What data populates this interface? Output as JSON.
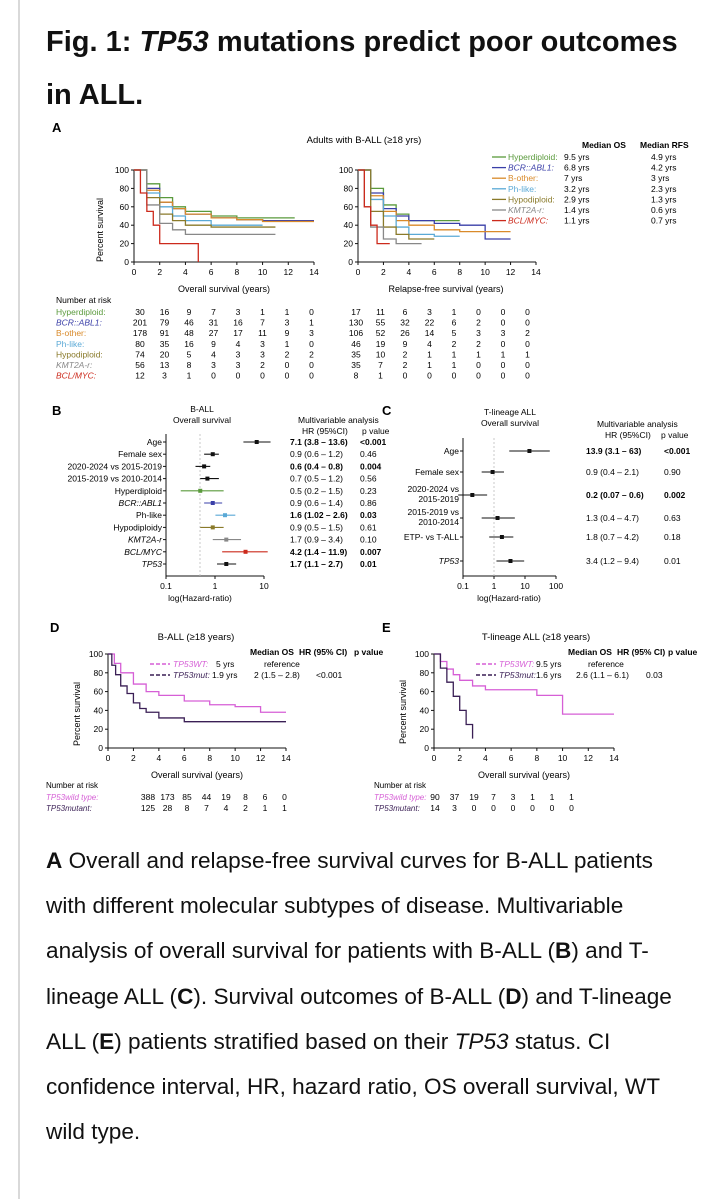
{
  "title": {
    "prefix": "Fig. 1: ",
    "gene": "TP53",
    "rest": " mutations predict poor outcomes in ALL."
  },
  "colors": {
    "hyperdiploid": "#5a9a3c",
    "bcr_abl1": "#3a3fa8",
    "b_other": "#d98a2a",
    "ph_like": "#5aa9d6",
    "hypodiploid": "#8a7a2a",
    "kmt2a": "#888888",
    "bcl_myc": "#cc2a1c",
    "wt": "#d65fd6",
    "mut": "#3a1f55"
  },
  "panelA": {
    "letter": "A",
    "heading": "Adults with B-ALL (≥18 yrs)",
    "ylabel": "Percent survival",
    "os_xlabel": "Overall survival (years)",
    "rfs_xlabel": "Relapse-free survival (years)",
    "yticks": [
      "0",
      "20",
      "40",
      "60",
      "80",
      "100"
    ],
    "xticks": [
      "0",
      "2",
      "4",
      "6",
      "8",
      "10",
      "12",
      "14"
    ],
    "legend_header_os": "Median OS",
    "legend_header_rfs": "Median RFS",
    "legend": [
      {
        "label": "Hyperdiploid:",
        "os": "9.5 yrs",
        "rfs": "4.9 yrs"
      },
      {
        "label": "BCR::ABL1:",
        "os": "6.8 yrs",
        "rfs": "4.2 yrs"
      },
      {
        "label": "B-other:",
        "os": "7 yrs",
        "rfs": "3 yrs"
      },
      {
        "label": "Ph-like:",
        "os": "3.2 yrs",
        "rfs": "2.3 yrs"
      },
      {
        "label": "Hypodiploid:",
        "os": "2.9 yrs",
        "rfs": "1.3 yrs"
      },
      {
        "label": "KMT2A-r:",
        "os": "1.4 yrs",
        "rfs": "0.6 yrs"
      },
      {
        "label": "BCL/MYC:",
        "os": "1.1 yrs",
        "rfs": "0.7 yrs"
      }
    ],
    "risk_title": "Number at risk",
    "risk_rows": [
      {
        "label": "Hyperdiploid:",
        "os": [
          "30",
          "16",
          "9",
          "7",
          "3",
          "1",
          "1",
          "0"
        ],
        "rfs": [
          "17",
          "11",
          "6",
          "3",
          "1",
          "0",
          "0",
          "0"
        ]
      },
      {
        "label": "BCR::ABL1:",
        "os": [
          "201",
          "79",
          "46",
          "31",
          "16",
          "7",
          "3",
          "1"
        ],
        "rfs": [
          "130",
          "55",
          "32",
          "22",
          "6",
          "2",
          "0",
          "0"
        ]
      },
      {
        "label": "B-other:",
        "os": [
          "178",
          "91",
          "48",
          "27",
          "17",
          "11",
          "9",
          "3"
        ],
        "rfs": [
          "106",
          "52",
          "26",
          "14",
          "5",
          "3",
          "3",
          "2"
        ]
      },
      {
        "label": "Ph-like:",
        "os": [
          "80",
          "35",
          "16",
          "9",
          "4",
          "3",
          "1",
          "0"
        ],
        "rfs": [
          "46",
          "19",
          "9",
          "4",
          "2",
          "2",
          "0",
          "0"
        ]
      },
      {
        "label": "Hypodiploid:",
        "os": [
          "74",
          "20",
          "5",
          "4",
          "3",
          "3",
          "2",
          "2"
        ],
        "rfs": [
          "35",
          "10",
          "2",
          "1",
          "1",
          "1",
          "1",
          "1"
        ]
      },
      {
        "label": "KMT2A-r:",
        "os": [
          "56",
          "13",
          "8",
          "3",
          "3",
          "2",
          "0",
          "0"
        ],
        "rfs": [
          "35",
          "7",
          "2",
          "1",
          "1",
          "0",
          "0",
          "0"
        ]
      },
      {
        "label": "BCL/MYC:",
        "os": [
          "12",
          "3",
          "1",
          "0",
          "0",
          "0",
          "0",
          "0"
        ],
        "rfs": [
          "8",
          "1",
          "0",
          "0",
          "0",
          "0",
          "0",
          "0"
        ]
      }
    ]
  },
  "panelB": {
    "letter": "B",
    "heading1": "B-ALL",
    "heading2": "Overall survival",
    "mv_title": "Multivariable analysis",
    "hr_header": "HR (95%CI)",
    "p_header": "p value",
    "xlabel": "log(Hazard-ratio)",
    "xticks": [
      "0.1",
      "1",
      "10"
    ],
    "rows": [
      {
        "label": "Age",
        "hr": "7.1 (3.8 – 13.6)",
        "p": "<0.001",
        "bold": true
      },
      {
        "label": "Female sex",
        "hr": "0.9 (0.6 – 1.2)",
        "p": "0.46",
        "bold": false
      },
      {
        "label": "2020-2024 vs 2015-2019",
        "hr": "0.6 (0.4 – 0.8)",
        "p": "0.004",
        "bold": true
      },
      {
        "label": "2015-2019 vs 2010-2014",
        "hr": "0.7 (0.5 – 1.2)",
        "p": "0.56",
        "bold": false
      },
      {
        "label": "Hyperdiploid",
        "hr": "0.5 (0.2 – 1.5)",
        "p": "0.23",
        "bold": false
      },
      {
        "label": "BCR::ABL1",
        "hr": "0.9 (0.6 – 1.4)",
        "p": "0.86",
        "bold": false
      },
      {
        "label": "Ph-like",
        "hr": "1.6 (1.02 – 2.6)",
        "p": "0.03",
        "bold": true
      },
      {
        "label": "Hypodiploidy",
        "hr": "0.9 (0.5 – 1.5)",
        "p": "0.61",
        "bold": false
      },
      {
        "label": "KMT2A-r",
        "hr": "1.7 (0.9 – 3.4)",
        "p": "0.10",
        "bold": false
      },
      {
        "label": "BCL/MYC",
        "hr": "4.2 (1.4 – 11.9)",
        "p": "0.007",
        "bold": true
      },
      {
        "label": "TP53",
        "hr": "1.7 (1.1 – 2.7)",
        "p": "0.01",
        "bold": true
      }
    ]
  },
  "panelC": {
    "letter": "C",
    "heading1": "T-lineage ALL",
    "heading2": "Overall survival",
    "mv_title": "Multivariable analysis",
    "hr_header": "HR (95%CI)",
    "p_header": "p value",
    "xlabel": "log(Hazard-ratio)",
    "xticks": [
      "0.1",
      "1",
      "10",
      "100"
    ],
    "rows": [
      {
        "label1": "Age",
        "label2": "",
        "hr": "13.9 (3.1 – 63)",
        "p": "<0.001",
        "bold": true
      },
      {
        "label1": "Female sex",
        "label2": "",
        "hr": "0.9 (0.4 – 2.1)",
        "p": "0.90",
        "bold": false
      },
      {
        "label1": "2020-2024 vs",
        "label2": "2015-2019",
        "hr": "0.2 (0.07 – 0.6)",
        "p": "0.002",
        "bold": true
      },
      {
        "label1": "2015-2019 vs",
        "label2": "2010-2014",
        "hr": "1.3 (0.4 – 4.7)",
        "p": "0.63",
        "bold": false
      },
      {
        "label1": "ETP- vs T-ALL",
        "label2": "",
        "hr": "1.8 (0.7 – 4.2)",
        "p": "0.18",
        "bold": false
      },
      {
        "label1": "TP53",
        "label2": "",
        "hr": "3.4 (1.2 – 9.4)",
        "p": "0.01",
        "bold": false
      }
    ]
  },
  "panelD": {
    "letter": "D",
    "heading": "B-ALL (≥18 years)",
    "ylabel": "Percent survival",
    "xlabel": "Overall survival (years)",
    "yticks": [
      "0",
      "20",
      "40",
      "60",
      "80",
      "100"
    ],
    "xticks": [
      "0",
      "2",
      "4",
      "6",
      "8",
      "10",
      "12",
      "14"
    ],
    "h_os": "Median OS",
    "h_hr": "HR (95% CI)",
    "h_p": "p value",
    "wt_label": "TP53WT:",
    "wt_os": "5 yrs",
    "wt_hr": "reference",
    "mut_label": "TP53mut:",
    "mut_os": "1.9 yrs",
    "mut_hr": "2 (1.5 – 2.8)",
    "mut_p": "<0.001",
    "risk_title": "Number at risk",
    "risk_wt_label": "TP53wild type",
    "risk_mut_label": "TP53mutant",
    "risk_wt": [
      "388",
      "173",
      "85",
      "44",
      "19",
      "8",
      "6",
      "0"
    ],
    "risk_mut": [
      "125",
      "28",
      "8",
      "7",
      "4",
      "2",
      "1",
      "1"
    ]
  },
  "panelE": {
    "letter": "E",
    "heading": "T-lineage ALL (≥18 years)",
    "ylabel": "Percent survival",
    "xlabel": "Overall survival (years)",
    "yticks": [
      "0",
      "20",
      "40",
      "60",
      "80",
      "100"
    ],
    "xticks": [
      "0",
      "2",
      "4",
      "6",
      "8",
      "10",
      "12",
      "14"
    ],
    "h_os": "Median OS",
    "h_hr": "HR (95% CI)",
    "h_p": "p value",
    "wt_label": "TP53WT:",
    "wt_os": "9.5 yrs",
    "wt_hr": "reference",
    "mut_label": "TP53mut:",
    "mut_os": "1.6 yrs",
    "mut_hr": "2.6 (1.1 – 6.1)",
    "mut_p": "0.03",
    "risk_title": "Number at risk",
    "risk_wt_label": "TP53wild type",
    "risk_mut_label": "TP53mutant",
    "risk_wt": [
      "90",
      "37",
      "19",
      "7",
      "3",
      "1",
      "1",
      "1"
    ],
    "risk_mut": [
      "14",
      "3",
      "0",
      "0",
      "0",
      "0",
      "0",
      "0"
    ]
  },
  "caption": {
    "a_letter": "A",
    "a_text": " Overall and relapse-free survival curves for B-ALL patients with different molecular subtypes of disease. Multivariable analysis of overall survival for patients with B-ALL (",
    "b_letter": "B",
    "mid1": ") and T-lineage ALL (",
    "c_letter": "C",
    "mid2": "). Survival outcomes of B-ALL (",
    "d_letter": "D",
    "mid3": ") and T-lineage ALL (",
    "e_letter": "E",
    "mid4": ") patients stratified based on their ",
    "gene": "TP53",
    "end": " status. CI confidence interval, HR, hazard ratio, OS overall survival, WT wild type."
  },
  "chart_data": [
    {
      "type": "line",
      "title": "Adults with B-ALL (≥18 yrs) — Overall survival",
      "xlabel": "Overall survival (years)",
      "ylabel": "Percent survival",
      "xlim": [
        0,
        14
      ],
      "ylim": [
        0,
        100
      ],
      "series": [
        {
          "name": "Hyperdiploid",
          "x": [
            0,
            1,
            2,
            3,
            4,
            6,
            8,
            10,
            12.5
          ],
          "y": [
            100,
            85,
            70,
            60,
            55,
            50,
            48,
            48,
            48
          ]
        },
        {
          "name": "BCR::ABL1",
          "x": [
            0,
            1,
            2,
            3,
            4,
            6,
            8,
            10,
            12,
            14
          ],
          "y": [
            100,
            80,
            65,
            58,
            52,
            48,
            46,
            45,
            45,
            45
          ]
        },
        {
          "name": "B-other",
          "x": [
            0,
            1,
            2,
            3,
            4,
            6,
            8,
            10,
            12,
            14
          ],
          "y": [
            100,
            78,
            65,
            58,
            52,
            48,
            46,
            44,
            44,
            44
          ]
        },
        {
          "name": "Ph-like",
          "x": [
            0,
            1,
            2,
            3,
            4,
            6,
            8,
            10
          ],
          "y": [
            100,
            75,
            60,
            50,
            45,
            40,
            40,
            40
          ]
        },
        {
          "name": "Hypodiploid",
          "x": [
            0,
            1,
            2,
            3,
            4,
            6,
            8,
            11
          ],
          "y": [
            100,
            70,
            52,
            45,
            40,
            38,
            38,
            38
          ]
        },
        {
          "name": "KMT2A-r",
          "x": [
            0,
            1,
            2,
            3,
            4,
            6,
            8,
            11
          ],
          "y": [
            100,
            62,
            42,
            35,
            30,
            30,
            30,
            30
          ]
        },
        {
          "name": "BCL/MYC",
          "x": [
            0,
            0.5,
            1,
            1.5,
            2,
            4,
            5
          ],
          "y": [
            100,
            75,
            55,
            40,
            20,
            20,
            0
          ]
        }
      ]
    },
    {
      "type": "line",
      "title": "Adults with B-ALL (≥18 yrs) — Relapse-free survival",
      "xlabel": "Relapse-free survival (years)",
      "ylabel": "Percent survival",
      "xlim": [
        0,
        14
      ],
      "ylim": [
        0,
        100
      ],
      "series": [
        {
          "name": "Hyperdiploid",
          "x": [
            0,
            1,
            2,
            3,
            4,
            6,
            8
          ],
          "y": [
            100,
            80,
            62,
            52,
            45,
            45,
            45
          ]
        },
        {
          "name": "BCR::ABL1",
          "x": [
            0,
            1,
            2,
            3,
            4,
            6,
            8,
            10,
            12
          ],
          "y": [
            100,
            75,
            58,
            50,
            45,
            42,
            40,
            25,
            25
          ]
        },
        {
          "name": "B-other",
          "x": [
            0,
            1,
            2,
            3,
            4,
            6,
            8,
            10,
            12
          ],
          "y": [
            100,
            72,
            55,
            45,
            40,
            35,
            33,
            33,
            33
          ]
        },
        {
          "name": "Ph-like",
          "x": [
            0,
            1,
            2,
            3,
            4,
            6,
            8
          ],
          "y": [
            100,
            68,
            50,
            38,
            30,
            28,
            28
          ]
        },
        {
          "name": "Hypodiploid",
          "x": [
            0,
            1,
            2,
            3,
            4,
            6
          ],
          "y": [
            100,
            55,
            38,
            30,
            25,
            25
          ]
        },
        {
          "name": "KMT2A-r",
          "x": [
            0,
            0.5,
            1,
            2,
            3,
            5
          ],
          "y": [
            100,
            60,
            38,
            25,
            20,
            20
          ]
        },
        {
          "name": "BCL/MYC",
          "x": [
            0,
            0.5,
            1,
            1.5,
            2.5
          ],
          "y": [
            100,
            60,
            40,
            20,
            20
          ]
        }
      ]
    },
    {
      "type": "forest",
      "title": "B-ALL Overall survival — Multivariable analysis",
      "xlabel": "log(Hazard-ratio)",
      "xscale": "log",
      "xlim": [
        0.1,
        10
      ],
      "categories": [
        "Age",
        "Female sex",
        "2020-2024 vs 2015-2019",
        "2015-2019 vs 2010-2014",
        "Hyperdiploid",
        "BCR::ABL1",
        "Ph-like",
        "Hypodiploidy",
        "KMT2A-r",
        "BCL/MYC",
        "TP53"
      ],
      "hr": [
        7.1,
        0.9,
        0.6,
        0.7,
        0.5,
        0.9,
        1.6,
        0.9,
        1.7,
        4.2,
        1.7
      ],
      "lo": [
        3.8,
        0.6,
        0.4,
        0.5,
        0.2,
        0.6,
        1.02,
        0.5,
        0.9,
        1.4,
        1.1
      ],
      "hi": [
        13.6,
        1.2,
        0.8,
        1.2,
        1.5,
        1.4,
        2.6,
        1.5,
        3.4,
        11.9,
        2.7
      ],
      "colors": [
        "#111111",
        "#111111",
        "#111111",
        "#111111",
        "#5a9a3c",
        "#3a3fa8",
        "#5aa9d6",
        "#8a7a2a",
        "#888888",
        "#cc2a1c",
        "#111111"
      ]
    },
    {
      "type": "forest",
      "title": "T-lineage ALL Overall survival — Multivariable analysis",
      "xlabel": "log(Hazard-ratio)",
      "xscale": "log",
      "xlim": [
        0.1,
        100
      ],
      "categories": [
        "Age",
        "Female sex",
        "2020-2024 vs 2015-2019",
        "2015-2019 vs 2010-2014",
        "ETP- vs T-ALL",
        "TP53"
      ],
      "hr": [
        13.9,
        0.9,
        0.2,
        1.3,
        1.8,
        3.4
      ],
      "lo": [
        3.1,
        0.4,
        0.07,
        0.4,
        0.7,
        1.2
      ],
      "hi": [
        63,
        2.1,
        0.6,
        4.7,
        4.2,
        9.4
      ]
    },
    {
      "type": "line",
      "title": "B-ALL (≥18 years)",
      "xlabel": "Overall survival (years)",
      "ylabel": "Percent survival",
      "xlim": [
        0,
        14
      ],
      "ylim": [
        0,
        100
      ],
      "series": [
        {
          "name": "TP53WT",
          "x": [
            0,
            0.5,
            1,
            2,
            3,
            4,
            6,
            8,
            10,
            12,
            14
          ],
          "y": [
            100,
            90,
            80,
            68,
            60,
            56,
            50,
            46,
            44,
            38,
            38
          ]
        },
        {
          "name": "TP53mut",
          "x": [
            0,
            0.3,
            0.6,
            1,
            1.5,
            2,
            2.5,
            3,
            4,
            6,
            8,
            9.5,
            14
          ],
          "y": [
            100,
            88,
            78,
            66,
            58,
            48,
            42,
            38,
            32,
            28,
            28,
            28,
            28
          ]
        }
      ]
    },
    {
      "type": "line",
      "title": "T-lineage ALL (≥18 years)",
      "xlabel": "Overall survival (years)",
      "ylabel": "Percent survival",
      "xlim": [
        0,
        14
      ],
      "ylim": [
        0,
        100
      ],
      "series": [
        {
          "name": "TP53WT",
          "x": [
            0,
            0.5,
            1,
            1.5,
            2,
            3,
            4,
            6,
            8,
            9.5,
            10,
            14
          ],
          "y": [
            100,
            92,
            84,
            78,
            72,
            66,
            62,
            62,
            56,
            56,
            36,
            36
          ]
        },
        {
          "name": "TP53mut",
          "x": [
            0,
            0.5,
            1,
            1.5,
            2,
            2.5,
            3
          ],
          "y": [
            100,
            85,
            70,
            55,
            40,
            25,
            10
          ]
        }
      ]
    }
  ]
}
